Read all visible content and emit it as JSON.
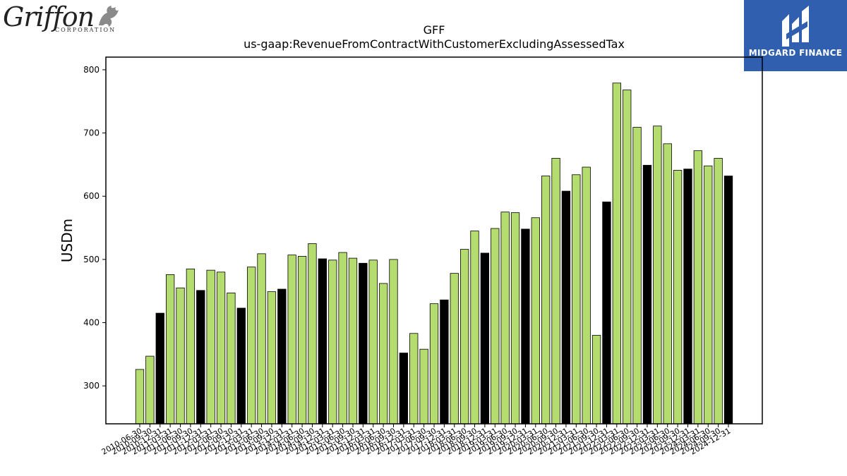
{
  "logos": {
    "left": {
      "word": "Griffon",
      "sub": "CORPORATION"
    },
    "right": {
      "word": "MIDGARD FINANCE"
    }
  },
  "colors": {
    "up": "#b5dc6e",
    "down": "#000000",
    "axis": "#000000",
    "logo_bg": "#2f5fae"
  },
  "chart_data": {
    "type": "bar",
    "title": "GFF",
    "subtitle": "us-gaap:RevenueFromContractWithCustomerExcludingAssessedTax",
    "ylabel": "USDm",
    "xlabel": "",
    "ylim": [
      240,
      820
    ],
    "yticks": [
      300,
      400,
      500,
      600,
      700,
      800
    ],
    "grid": false,
    "categories": [
      "2010-06-30",
      "2010-09-30",
      "2010-12-31",
      "2011-03-31",
      "2011-06-30",
      "2011-09-30",
      "2011-12-31",
      "2012-03-31",
      "2012-06-30",
      "2012-09-30",
      "2012-12-31",
      "2013-03-31",
      "2013-06-30",
      "2013-09-30",
      "2013-12-31",
      "2014-03-31",
      "2014-06-30",
      "2014-09-30",
      "2014-12-31",
      "2015-03-31",
      "2015-06-30",
      "2015-09-30",
      "2015-12-31",
      "2016-03-31",
      "2016-06-30",
      "2016-09-30",
      "2016-12-31",
      "2017-03-31",
      "2017-06-30",
      "2017-09-30",
      "2017-12-31",
      "2018-03-31",
      "2018-06-30",
      "2018-09-30",
      "2018-12-31",
      "2019-03-31",
      "2019-06-30",
      "2019-09-30",
      "2019-12-31",
      "2020-03-31",
      "2020-06-30",
      "2020-09-30",
      "2020-12-31",
      "2021-03-31",
      "2021-06-30",
      "2021-09-30",
      "2021-12-31",
      "2022-03-31",
      "2022-06-30",
      "2022-09-30",
      "2022-12-31",
      "2023-03-31",
      "2023-06-30",
      "2023-09-30",
      "2023-12-31",
      "2024-03-31",
      "2024-06-30",
      "2024-09-30",
      "2024-12-31"
    ],
    "values": [
      326,
      347,
      415,
      476,
      455,
      485,
      451,
      483,
      480,
      447,
      423,
      488,
      509,
      449,
      453,
      507,
      505,
      525,
      501,
      499,
      511,
      502,
      494,
      499,
      462,
      500,
      352,
      383,
      358,
      430,
      436,
      478,
      516,
      545,
      510,
      549,
      575,
      574,
      548,
      566,
      632,
      660,
      608,
      634,
      646,
      380,
      591,
      779,
      768,
      709,
      649,
      711,
      683,
      641,
      643,
      672,
      648,
      660,
      632
    ],
    "colors": [
      "up",
      "up",
      "down",
      "up",
      "up",
      "up",
      "down",
      "up",
      "up",
      "up",
      "down",
      "up",
      "up",
      "up",
      "down",
      "up",
      "up",
      "up",
      "down",
      "up",
      "up",
      "up",
      "down",
      "up",
      "up",
      "up",
      "down",
      "up",
      "up",
      "up",
      "down",
      "up",
      "up",
      "up",
      "down",
      "up",
      "up",
      "up",
      "down",
      "up",
      "up",
      "up",
      "down",
      "up",
      "up",
      "up",
      "down",
      "up",
      "up",
      "up",
      "down",
      "up",
      "up",
      "up",
      "down",
      "up",
      "up",
      "up",
      "down"
    ]
  }
}
